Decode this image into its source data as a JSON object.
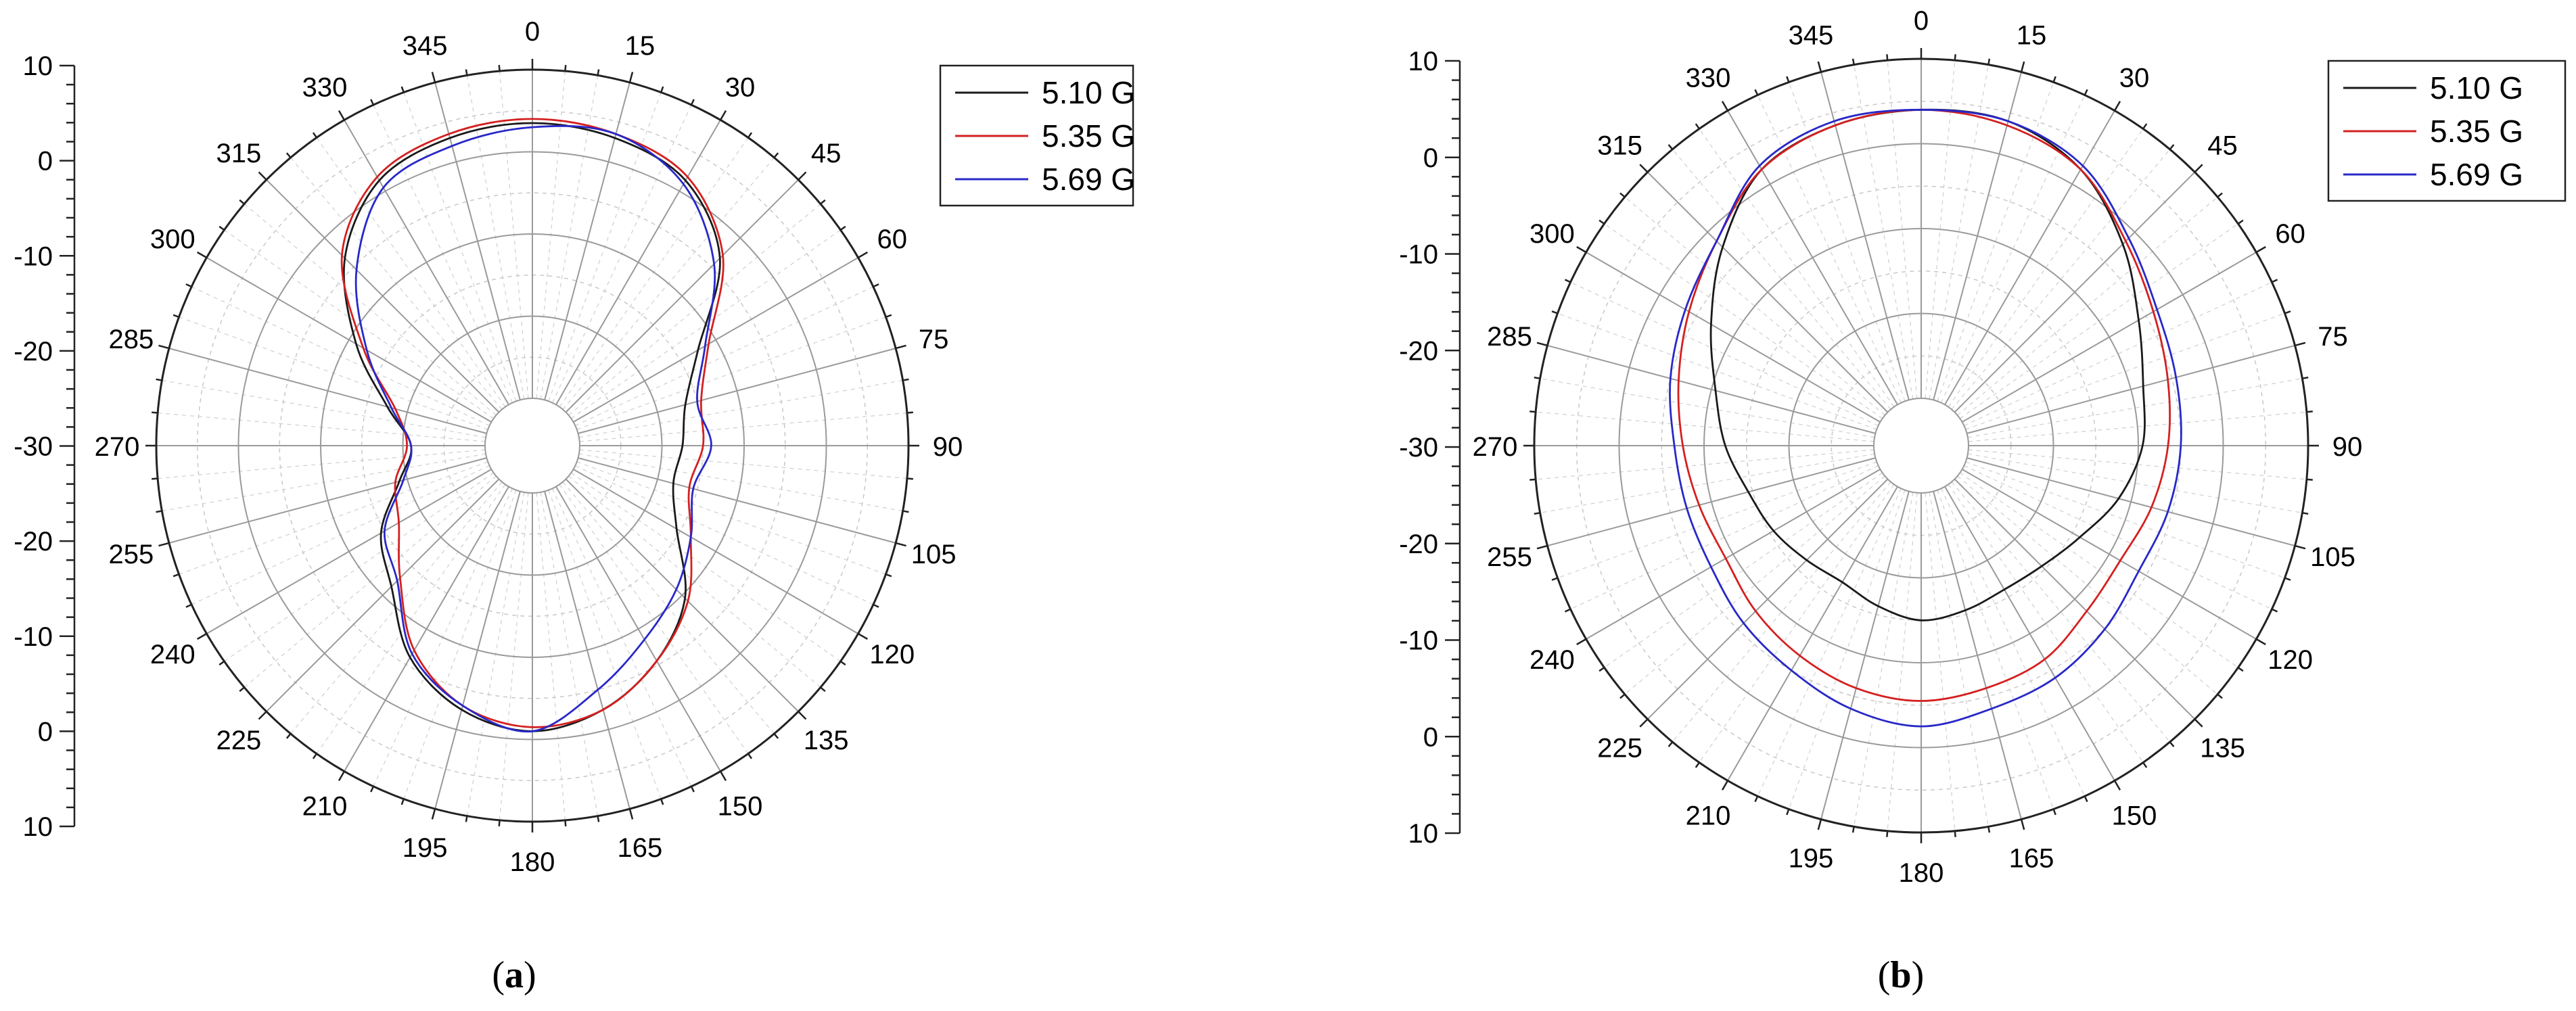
{
  "captions": {
    "a_open": "(",
    "a_letter": "a",
    "a_close": ")",
    "b_open": "(",
    "b_letter": "b",
    "b_close": ")"
  },
  "colors": {
    "series_1": "#1a1a1a",
    "series_2": "#d42020",
    "series_3": "#2828c8",
    "grid": "#9a9a9a"
  },
  "chart_data": [
    {
      "type": "polar_line",
      "panel": "a",
      "title": "",
      "theta_unit": "deg",
      "theta_direction": "clockwise",
      "theta_zero": "top",
      "theta_tick_labels": [
        "0",
        "15",
        "30",
        "45",
        "60",
        "75",
        "90",
        "105",
        "120",
        "135",
        "150",
        "165",
        "180",
        "195",
        "210",
        "225",
        "240",
        "255",
        "270",
        "285",
        "300",
        "315",
        "330",
        "345"
      ],
      "radial_range": [
        -30,
        10
      ],
      "radial_ticks": [
        -30,
        -20,
        -10,
        0,
        10
      ],
      "radial_axis_labels": [
        "10",
        "0",
        "-10",
        "-20",
        "-30",
        "-20",
        "-10",
        "0",
        "10"
      ],
      "grid": true,
      "legend_position": "top-right",
      "legend": [
        "5.10 G",
        "5.35 G",
        "5.69 G"
      ],
      "theta": [
        0,
        15,
        30,
        45,
        60,
        75,
        90,
        105,
        120,
        135,
        150,
        165,
        180,
        195,
        210,
        225,
        240,
        255,
        270,
        285,
        300,
        315,
        330,
        345
      ],
      "series": [
        {
          "name": "5.10 G",
          "values": [
            3.5,
            3.0,
            1.5,
            -3.5,
            -12.5,
            -16.5,
            -17.5,
            -18.0,
            -15.5,
            -9.5,
            -5.5,
            -2.5,
            -1.0,
            -2.5,
            -6.0,
            -11.5,
            -14.5,
            -19.0,
            -21.0,
            -17.5,
            -11.0,
            -3.5,
            1.5,
            3.0
          ]
        },
        {
          "name": "5.35 G",
          "values": [
            4.0,
            3.5,
            2.0,
            -3.0,
            -11.0,
            -14.5,
            -15.0,
            -16.0,
            -13.5,
            -9.0,
            -5.5,
            -2.5,
            -1.5,
            -3.0,
            -7.0,
            -13.0,
            -17.0,
            -18.5,
            -20.5,
            -18.5,
            -12.0,
            -3.0,
            2.0,
            3.5
          ]
        },
        {
          "name": "5.69 G",
          "values": [
            3.0,
            3.5,
            1.0,
            -4.5,
            -11.5,
            -15.0,
            -14.0,
            -15.5,
            -13.5,
            -11.0,
            -8.5,
            -5.0,
            -1.0,
            -3.0,
            -6.5,
            -12.5,
            -15.0,
            -19.5,
            -21.0,
            -18.0,
            -12.5,
            -5.5,
            0.5,
            2.0
          ]
        }
      ]
    },
    {
      "type": "polar_line",
      "panel": "b",
      "title": "",
      "theta_unit": "deg",
      "theta_direction": "clockwise",
      "theta_zero": "top",
      "theta_tick_labels": [
        "0",
        "15",
        "30",
        "45",
        "60",
        "75",
        "90",
        "105",
        "120",
        "135",
        "150",
        "165",
        "180",
        "195",
        "210",
        "225",
        "240",
        "255",
        "270",
        "285",
        "300",
        "315",
        "330",
        "345"
      ],
      "radial_range": [
        -30,
        10
      ],
      "radial_ticks": [
        -30,
        -20,
        -10,
        0,
        10
      ],
      "radial_axis_labels": [
        "10",
        "0",
        "-10",
        "-20",
        "-30",
        "-20",
        "-10",
        "0",
        "10"
      ],
      "grid": true,
      "legend_position": "top-right",
      "legend": [
        "5.10 G",
        "5.35 G",
        "5.69 G"
      ],
      "theta": [
        0,
        15,
        30,
        45,
        60,
        75,
        90,
        105,
        120,
        135,
        150,
        165,
        180,
        195,
        210,
        225,
        240,
        255,
        270,
        285,
        300,
        315,
        330,
        345
      ],
      "series": [
        {
          "name": "5.10 G",
          "values": [
            4.0,
            4.0,
            2.0,
            -2.0,
            -6.0,
            -8.5,
            -9.5,
            -11.5,
            -14.0,
            -15.5,
            -16.0,
            -15.5,
            -15.0,
            -16.0,
            -17.0,
            -16.5,
            -15.5,
            -14.5,
            -12.5,
            -10.5,
            -7.0,
            -2.5,
            2.0,
            3.5
          ]
        },
        {
          "name": "5.35 G",
          "values": [
            4.0,
            3.5,
            2.0,
            -1.5,
            -4.0,
            -5.5,
            -6.5,
            -7.5,
            -8.5,
            -8.0,
            -6.5,
            -6.0,
            -5.5,
            -6.0,
            -7.0,
            -8.0,
            -9.0,
            -8.5,
            -7.5,
            -6.0,
            -4.0,
            -1.5,
            2.0,
            3.5
          ]
        },
        {
          "name": "5.69 G",
          "values": [
            4.0,
            4.0,
            2.5,
            -1.0,
            -3.5,
            -4.5,
            -5.0,
            -5.5,
            -6.0,
            -5.0,
            -4.0,
            -3.5,
            -2.5,
            -3.5,
            -5.0,
            -6.0,
            -7.0,
            -7.0,
            -6.5,
            -5.0,
            -3.5,
            -1.5,
            2.5,
            4.0
          ]
        }
      ]
    }
  ]
}
